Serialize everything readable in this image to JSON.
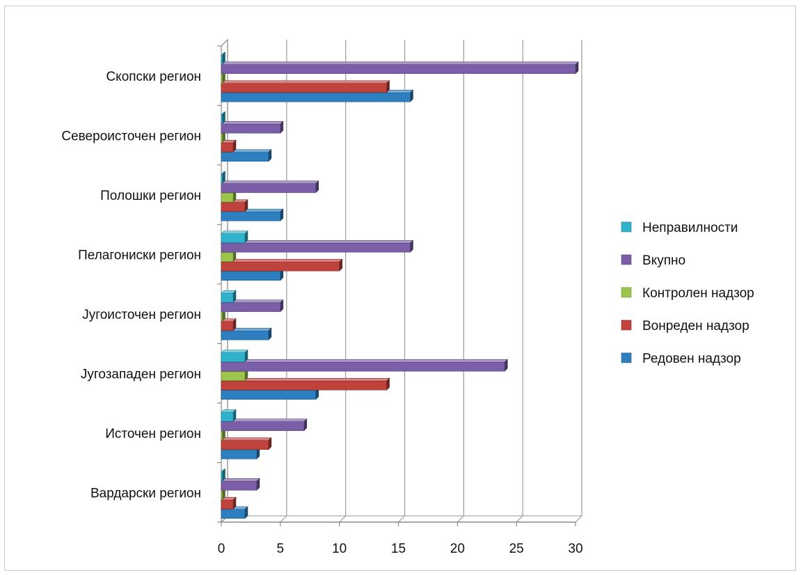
{
  "chart_data": {
    "type": "bar",
    "orientation": "horizontal",
    "style": "3d-clustered",
    "categories": [
      "Скопски регион",
      "Североисточен регион",
      "Полошки регион",
      "Пелагониски регион",
      "Југоисточен регион",
      "Југозападен  регион",
      "Источен регион",
      "Вардарски регион"
    ],
    "series": [
      {
        "name": "Неправилности",
        "color": "#2fb3cc",
        "values": [
          0,
          0,
          0,
          2,
          1,
          2,
          1,
          0
        ]
      },
      {
        "name": "Вкупно",
        "color": "#7a5fa8",
        "values": [
          30,
          5,
          8,
          16,
          5,
          24,
          7,
          3
        ]
      },
      {
        "name": "Контролен надзор",
        "color": "#9cc64b",
        "values": [
          0,
          0,
          1,
          1,
          0,
          2,
          0,
          0
        ]
      },
      {
        "name": "Вонреден надзор",
        "color": "#c0423d",
        "values": [
          14,
          1,
          2,
          10,
          1,
          14,
          4,
          1
        ]
      },
      {
        "name": "Редовен надзор",
        "color": "#2e7fc0",
        "values": [
          16,
          4,
          5,
          5,
          4,
          8,
          3,
          2
        ]
      }
    ],
    "xlim": [
      0,
      30
    ],
    "xticks": [
      "0",
      "5",
      "10",
      "15",
      "20",
      "25",
      "30"
    ],
    "grid": true,
    "legend_position": "right"
  }
}
